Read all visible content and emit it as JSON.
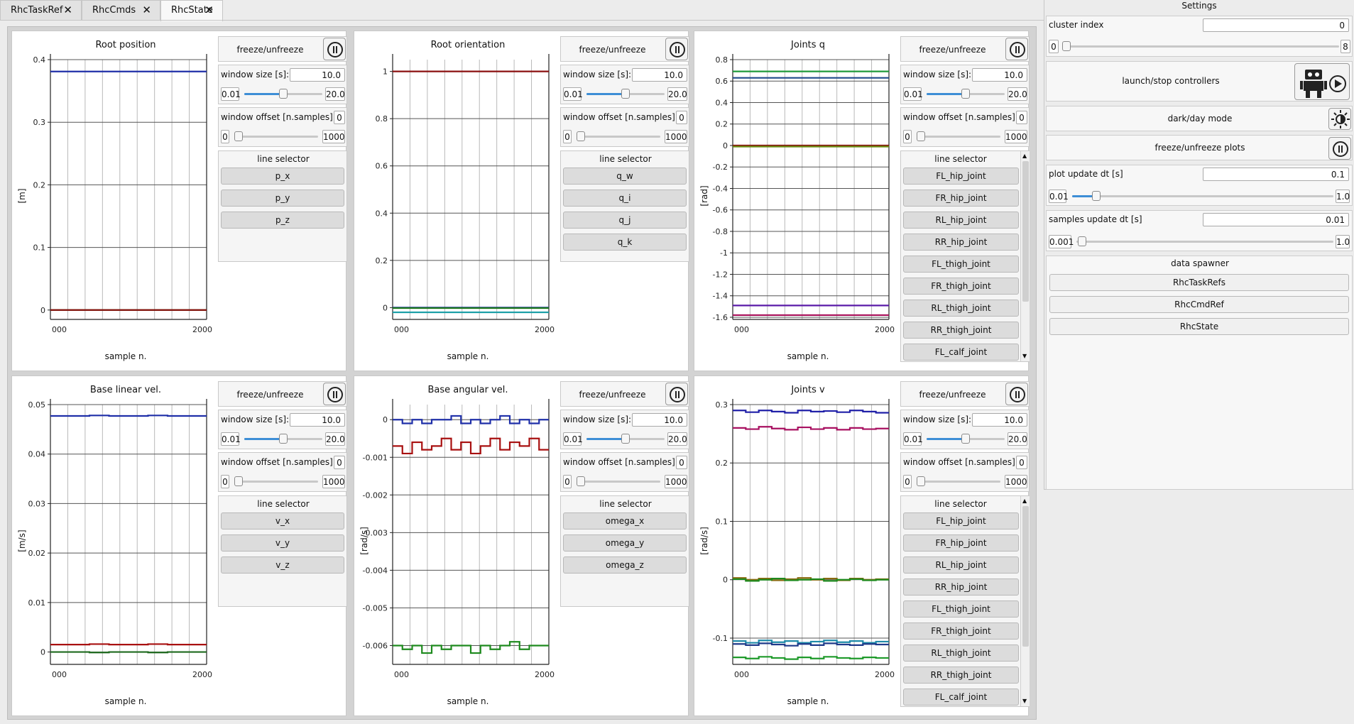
{
  "tabs": [
    {
      "label": "RhcTaskRef",
      "active": false
    },
    {
      "label": "RhcCmds",
      "active": false
    },
    {
      "label": "RhcState",
      "active": true
    }
  ],
  "common": {
    "freeze_label": "freeze/unfreeze",
    "window_size_label": "window size [s]:",
    "window_size_value": "10.0",
    "window_min": "0.01",
    "window_max": "20.0",
    "window_offset_label": "window offset [n.samples]:",
    "window_offset_value": "0",
    "offset_min": "0",
    "offset_max": "1000",
    "line_selector_label": "line selector",
    "xlabel": "sample n.",
    "window_slider_fraction": 0.5,
    "offset_slider_fraction": 0.0
  },
  "plots": [
    {
      "title": "Root position",
      "ylabel": "[m]",
      "selectors": [
        "p_x",
        "p_y",
        "p_z"
      ],
      "scroll": false,
      "chart_data": {
        "type": "line",
        "xlim": [
          0,
          2000
        ],
        "ylim": [
          -0.015,
          0.4
        ],
        "yticks": [
          "0.4",
          "0.3",
          "0.2",
          "0.1",
          "0"
        ],
        "ytick_values": [
          0.4,
          0.3,
          0.2,
          0.1,
          0
        ],
        "xtick_labels": [
          "000",
          "2000"
        ],
        "series": [
          {
            "color": "#1f2fa8",
            "values": [
              0.381,
              0.381
            ]
          },
          {
            "color": "#1e7a1e",
            "values": [
              0.0,
              0.0
            ]
          },
          {
            "color": "#8b1010",
            "values": [
              0.0,
              0.0
            ]
          }
        ]
      }
    },
    {
      "title": "Root orientation",
      "ylabel": "",
      "selectors": [
        "q_w",
        "q_i",
        "q_j",
        "q_k"
      ],
      "scroll": false,
      "chart_data": {
        "type": "line",
        "xlim": [
          0,
          2000
        ],
        "ylim": [
          -0.05,
          1.05
        ],
        "yticks": [
          "1",
          "0.8",
          "0.6",
          "0.4",
          "0.2",
          "0"
        ],
        "ytick_values": [
          1,
          0.8,
          0.6,
          0.4,
          0.2,
          0
        ],
        "xtick_labels": [
          "000",
          "2000"
        ],
        "series": [
          {
            "color": "#8b1010",
            "values": [
              1.0,
              1.0
            ]
          },
          {
            "color": "#1f2fa8",
            "values": [
              0.0,
              0.0
            ]
          },
          {
            "color": "#1e7a1e",
            "values": [
              -0.002,
              -0.002
            ]
          },
          {
            "color": "#1ea0a8",
            "values": [
              -0.02,
              -0.02
            ]
          }
        ]
      }
    },
    {
      "title": "Joints q",
      "ylabel": "[rad]",
      "selectors": [
        "FL_hip_joint",
        "FR_hip_joint",
        "RL_hip_joint",
        "RR_hip_joint",
        "FL_thigh_joint",
        "FR_thigh_joint",
        "RL_thigh_joint",
        "RR_thigh_joint",
        "FL_calf_joint"
      ],
      "scroll": true,
      "chart_data": {
        "type": "line",
        "xlim": [
          0,
          2000
        ],
        "ylim": [
          -1.62,
          0.8
        ],
        "yticks": [
          "0.8",
          "0.6",
          "0.4",
          "0.2",
          "0",
          "-0.2",
          "-0.4",
          "-0.6",
          "-0.8",
          "-1",
          "-1.2",
          "-1.4",
          "-1.6"
        ],
        "ytick_values": [
          0.8,
          0.6,
          0.4,
          0.2,
          0,
          -0.2,
          -0.4,
          -0.6,
          -0.8,
          -1,
          -1.2,
          -1.4,
          -1.6
        ],
        "xtick_labels": [
          "000",
          "2000"
        ],
        "series": [
          {
            "color": "#1e9a3a",
            "values": [
              0.69,
              0.69
            ]
          },
          {
            "color": "#1f4a8a",
            "values": [
              0.63,
              0.63
            ]
          },
          {
            "color": "#8b1010",
            "values": [
              0.0,
              0.0
            ]
          },
          {
            "color": "#6a8a10",
            "values": [
              -0.01,
              -0.01
            ]
          },
          {
            "color": "#5a1aa8",
            "values": [
              -1.49,
              -1.49
            ]
          },
          {
            "color": "#a8105a",
            "values": [
              -1.58,
              -1.58
            ]
          }
        ]
      }
    },
    {
      "title": "Base linear vel.",
      "ylabel": "[m/s]",
      "selectors": [
        "v_x",
        "v_y",
        "v_z"
      ],
      "scroll": false,
      "chart_data": {
        "type": "line",
        "xlim": [
          0,
          2000
        ],
        "ylim": [
          -0.0025,
          0.05
        ],
        "yticks": [
          "0.05",
          "0.04",
          "0.03",
          "0.02",
          "0.01",
          "0"
        ],
        "ytick_values": [
          0.05,
          0.04,
          0.03,
          0.02,
          0.01,
          0
        ],
        "xtick_labels": [
          "000",
          "2000"
        ],
        "series": [
          {
            "color": "#1f2fa8",
            "values": [
              0.0477,
              0.0477,
              0.0478,
              0.0477,
              0.0477,
              0.0478,
              0.0477,
              0.0477
            ]
          },
          {
            "color": "#a81010",
            "values": [
              0.0015,
              0.0015,
              0.0016,
              0.0015,
              0.0015,
              0.0016,
              0.0015,
              0.0015
            ]
          },
          {
            "color": "#1e6a1e",
            "values": [
              0.0,
              0.0,
              -0.0001,
              0.0,
              0.0,
              -0.0001,
              0.0,
              0.0
            ]
          }
        ]
      }
    },
    {
      "title": "Base angular vel.",
      "ylabel": "[rad/s]",
      "selectors": [
        "omega_x",
        "omega_y",
        "omega_z"
      ],
      "scroll": false,
      "chart_data": {
        "type": "line",
        "xlim": [
          0,
          2000
        ],
        "ylim": [
          -0.0065,
          0.0004
        ],
        "yticks": [
          "0",
          "-0.001",
          "-0.002",
          "-0.003",
          "-0.004",
          "-0.005",
          "-0.006"
        ],
        "ytick_values": [
          0,
          -0.001,
          -0.002,
          -0.003,
          -0.004,
          -0.005,
          -0.006
        ],
        "xtick_labels": [
          "000",
          "2000"
        ],
        "series": [
          {
            "color": "#1f2fa8",
            "values": [
              0.0,
              -0.0001,
              0.0,
              -0.0001,
              0.0,
              0.0,
              0.0001,
              -0.0001,
              0.0,
              -0.0001,
              0.0,
              0.0001,
              -0.0001,
              0.0,
              -0.0001,
              0.0
            ]
          },
          {
            "color": "#a81010",
            "values": [
              -0.0007,
              -0.0009,
              -0.0006,
              -0.0008,
              -0.0007,
              -0.0005,
              -0.0008,
              -0.0006,
              -0.0009,
              -0.0007,
              -0.0005,
              -0.0008,
              -0.0006,
              -0.0007,
              -0.0005,
              -0.0008
            ]
          },
          {
            "color": "#1e8a1e",
            "values": [
              -0.006,
              -0.0061,
              -0.006,
              -0.0062,
              -0.006,
              -0.0061,
              -0.006,
              -0.006,
              -0.0062,
              -0.006,
              -0.0061,
              -0.006,
              -0.0059,
              -0.0061,
              -0.006,
              -0.006
            ]
          }
        ]
      }
    },
    {
      "title": "Joints v",
      "ylabel": "[rad/s]",
      "selectors": [
        "FL_hip_joint",
        "FR_hip_joint",
        "RL_hip_joint",
        "RR_hip_joint",
        "FL_thigh_joint",
        "FR_thigh_joint",
        "RL_thigh_joint",
        "RR_thigh_joint",
        "FL_calf_joint"
      ],
      "scroll": true,
      "chart_data": {
        "type": "line",
        "xlim": [
          0,
          2000
        ],
        "ylim": [
          -0.145,
          0.3
        ],
        "yticks": [
          "0.3",
          "0.2",
          "0.1",
          "0",
          "-0.1"
        ],
        "ytick_values": [
          0.3,
          0.2,
          0.1,
          0,
          -0.1
        ],
        "xtick_labels": [
          "000",
          "2000"
        ],
        "series": [
          {
            "color": "#2020a8",
            "values": [
              0.29,
              0.287,
              0.29,
              0.288,
              0.286,
              0.29,
              0.288,
              0.289,
              0.287,
              0.29,
              0.288,
              0.286
            ]
          },
          {
            "color": "#a81060",
            "values": [
              0.26,
              0.258,
              0.262,
              0.259,
              0.257,
              0.261,
              0.258,
              0.26,
              0.257,
              0.26,
              0.258,
              0.259
            ]
          },
          {
            "color": "#8b6a10",
            "values": [
              0.003,
              0.0,
              0.002,
              -0.001,
              0.001,
              0.003,
              0.0,
              0.002,
              -0.001,
              0.002,
              0.0,
              0.001
            ]
          },
          {
            "color": "#1e8a1e",
            "values": [
              0.001,
              -0.002,
              0.0,
              0.002,
              -0.001,
              0.0,
              0.001,
              -0.002,
              0.0,
              0.001,
              -0.001,
              0.0
            ]
          },
          {
            "color": "#1e8aa8",
            "values": [
              -0.105,
              -0.108,
              -0.104,
              -0.107,
              -0.105,
              -0.108,
              -0.106,
              -0.104,
              -0.107,
              -0.105,
              -0.108,
              -0.106
            ]
          },
          {
            "color": "#1f3a8a",
            "values": [
              -0.11,
              -0.112,
              -0.109,
              -0.111,
              -0.113,
              -0.11,
              -0.112,
              -0.109,
              -0.111,
              -0.112,
              -0.11,
              -0.111
            ]
          },
          {
            "color": "#1e9a2a",
            "values": [
              -0.133,
              -0.135,
              -0.132,
              -0.134,
              -0.136,
              -0.133,
              -0.135,
              -0.132,
              -0.134,
              -0.135,
              -0.133,
              -0.134
            ]
          }
        ]
      }
    }
  ],
  "settings": {
    "title": "Settings",
    "cluster_index_label": "cluster index",
    "cluster_index_value": "0",
    "cluster_min": "0",
    "cluster_max": "8",
    "launch_label": "launch/stop controllers",
    "dark_mode_label": "dark/day mode",
    "freeze_plots_label": "freeze/unfreeze plots",
    "plot_dt_label": "plot update dt [s]",
    "plot_dt_value": "0.1",
    "plot_dt_min": "0.01",
    "plot_dt_max": "1.0",
    "samples_dt_label": "samples update dt [s]",
    "samples_dt_value": "0.01",
    "samples_dt_min": "0.001",
    "samples_dt_max": "1.0",
    "data_spawner_label": "data spawner",
    "spawner_buttons": [
      "RhcTaskRefs",
      "RhcCmdRef",
      "RhcState"
    ]
  }
}
